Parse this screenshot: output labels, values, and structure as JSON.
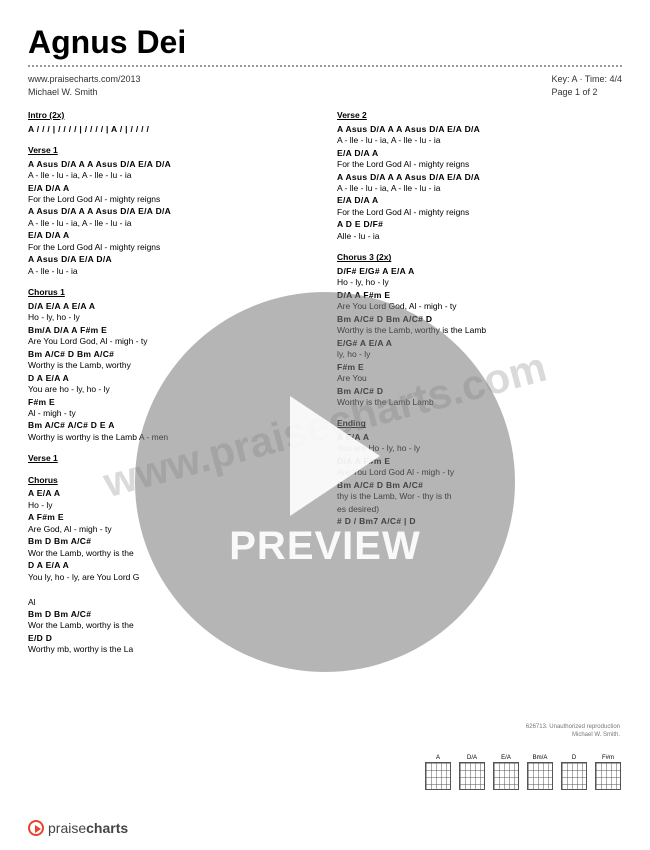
{
  "title": "Agnus Dei",
  "meta": {
    "url": "www.praisecharts.com/2013",
    "author": "Michael W. Smith",
    "key": "Key: A · Time: 4/4",
    "page": "Page 1 of 2"
  },
  "watermark": "www.praisecharts.com",
  "preview": "PREVIEW",
  "footer": {
    "brand_prefix": "praise",
    "brand_suffix": "charts"
  },
  "copyright": {
    "line1": "626713. Unauthorized reproduction",
    "line2": "Michael W. Smith."
  },
  "chord_names": [
    "A",
    "D/A",
    "E/A",
    "Bm/A",
    "D",
    "F#m"
  ],
  "columns": [
    [
      {
        "title": "Intro (2x)",
        "lines": [
          {
            "chords": "A  / / /  |  / / / /  |  / / / /  |  A  / |  / / / /"
          }
        ]
      },
      {
        "title": "Verse 1",
        "lines": [
          {
            "chords": "A  Asus        D/A  A  A  Asus        D/A  E/A  D/A"
          },
          {
            "lyric": "A       - lle - lu  - ia, A       - lle - lu        -  ia"
          },
          {
            "chords": "          E/A             D/A     A"
          },
          {
            "lyric": "For the Lord God Al - mighty reigns"
          },
          {
            "chords": "A  Asus        D/A  A  A  Asus        D/A  E/A  D/A"
          },
          {
            "lyric": "A       - lle - lu  - ia, A       - lle - lu        -  ia"
          },
          {
            "chords": "          E/A             D/A     A"
          },
          {
            "lyric": "For the Lord God Al - mighty reigns"
          },
          {
            "chords": "A  Asus        D/A  E/A  D/A"
          },
          {
            "lyric": "A       - lle - lu        -  ia"
          }
        ]
      },
      {
        "title": "Chorus 1",
        "lines": [
          {
            "chords": "D/A  E/A  A  E/A  A"
          },
          {
            "lyric": " Ho   -   ly, ho - ly"
          },
          {
            "chords": "Bm/A    D/A     A           F#m   E"
          },
          {
            "lyric": "Are You  Lord  God, Al - migh - ty"
          },
          {
            "chords": "Bm    A/C#    D    Bm    A/C#"
          },
          {
            "lyric": "Worthy  is  the Lamb, worthy"
          },
          {
            "chords": "D         A  E/A  A"
          },
          {
            "lyric": "You are ho - ly,  ho - ly"
          },
          {
            "chords": "    F#m   E"
          },
          {
            "lyric": "Al - migh - ty"
          },
          {
            "chords": "Bm    A/C#                A/C#    D        E  A"
          },
          {
            "lyric": "Worthy  is           worthy  is  the Lamb  A - men"
          }
        ]
      },
      {
        "title": "Verse 1",
        "lines": []
      },
      {
        "title": "Chorus",
        "lines": [
          {
            "chords": "          A  E/A  A"
          },
          {
            "lyric": " Ho            - ly"
          },
          {
            "chords": "        A           F#m   E"
          },
          {
            "lyric": "Are        God, Al - migh - ty"
          },
          {
            "chords": "Bm           D    Bm    A/C#"
          },
          {
            "lyric": "Wor     the Lamb, worthy  is  the"
          },
          {
            "chords": "D         A  E/A  A"
          },
          {
            "lyric": "You       ly,  ho - ly, are You Lord G"
          },
          {
            "lyric": ""
          },
          {
            "lyric": "Al"
          },
          {
            "chords": "Bm           D    Bm    A/C#"
          },
          {
            "lyric": "Wor      the Lamb, worthy  is  the"
          },
          {
            "chords": "          E/D           D"
          },
          {
            "lyric": "Worthy          mb,   worthy is the La"
          }
        ]
      }
    ],
    [
      {
        "title": "Verse 2",
        "lines": [
          {
            "chords": "A  Asus        D/A  A  A  Asus        D/A  E/A  D/A"
          },
          {
            "lyric": "A       - lle - lu  - ia, A       - lle - lu        -  ia"
          },
          {
            "chords": "          E/A             D/A     A"
          },
          {
            "lyric": "For the Lord God Al - mighty reigns"
          },
          {
            "chords": "A  Asus        D/A  A  A  Asus        D/A  E/A  D/A"
          },
          {
            "lyric": "A       - lle - lu  - ia, A       - lle - lu        -  ia"
          },
          {
            "chords": "          E/A             D/A     A"
          },
          {
            "lyric": "For the Lord God Al - mighty reigns"
          },
          {
            "chords": "A    D  E  D/F#"
          },
          {
            "lyric": "Alle - lu    -    ia"
          }
        ]
      },
      {
        "title": "Chorus 3 (2x)",
        "lines": [
          {
            "chords": "D/F#  E/G#  A  E/A  A"
          },
          {
            "lyric": "  Ho  -  ly,  ho - ly"
          },
          {
            "chords": "        D/A   A           F#m   E"
          },
          {
            "lyric": "Are You Lord God, Al - migh - ty"
          },
          {
            "chords": "Bm    A/C#    D    Bm    A/C#    D"
          },
          {
            "lyric": "Worthy  is  the Lamb, worthy  is  the Lamb"
          },
          {
            "chords": "      E/G#  A  E/A  A"
          },
          {
            "lyric": "           ly, ho - ly"
          },
          {
            "chords": "                          F#m   E"
          },
          {
            "lyric": "Are You                            "
          },
          {
            "chords": "Bm    A/C#                        D"
          },
          {
            "lyric": "Worthy  is  the Lamb              Lamb"
          }
        ]
      },
      {
        "title": "Ending",
        "lines": [
          {
            "chords": "              A  E/A  A"
          },
          {
            "lyric": "You are Ho - ly,  ho - ly"
          },
          {
            "chords": "        D/A   A           F#m   E"
          },
          {
            "lyric": "Are You Lord God Al - migh - ty"
          },
          {
            "chords": "Bm      A/C#    D    Bm      A/C#"
          },
          {
            "lyric": "      thy  is  the Lamb, Wor - thy  is  th"
          },
          {
            "lyric": "         es desired)"
          },
          {
            "chords": "            #    D     /   Bm7  A/C#  |  D"
          }
        ]
      }
    ]
  ]
}
